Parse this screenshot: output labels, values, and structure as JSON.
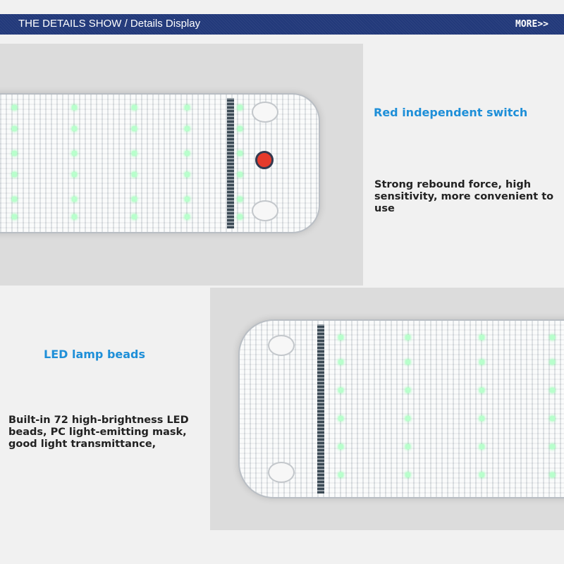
{
  "header": {
    "title": "THE DETAILS SHOW / Details Display",
    "more_label": "MORE>>"
  },
  "section1": {
    "caption": "Red independent switch",
    "description": "Strong rebound force, high sensitivity, more convenient to use"
  },
  "section2": {
    "caption": "LED lamp beads",
    "description": "Built-in 72 high-brightness LED beads, PC light-emitting mask, good light transmittance,"
  },
  "colors": {
    "header_bg": "#22397a",
    "caption": "#1e8fd8",
    "switch": "#e53a2c",
    "led": "#b8ffcc"
  }
}
